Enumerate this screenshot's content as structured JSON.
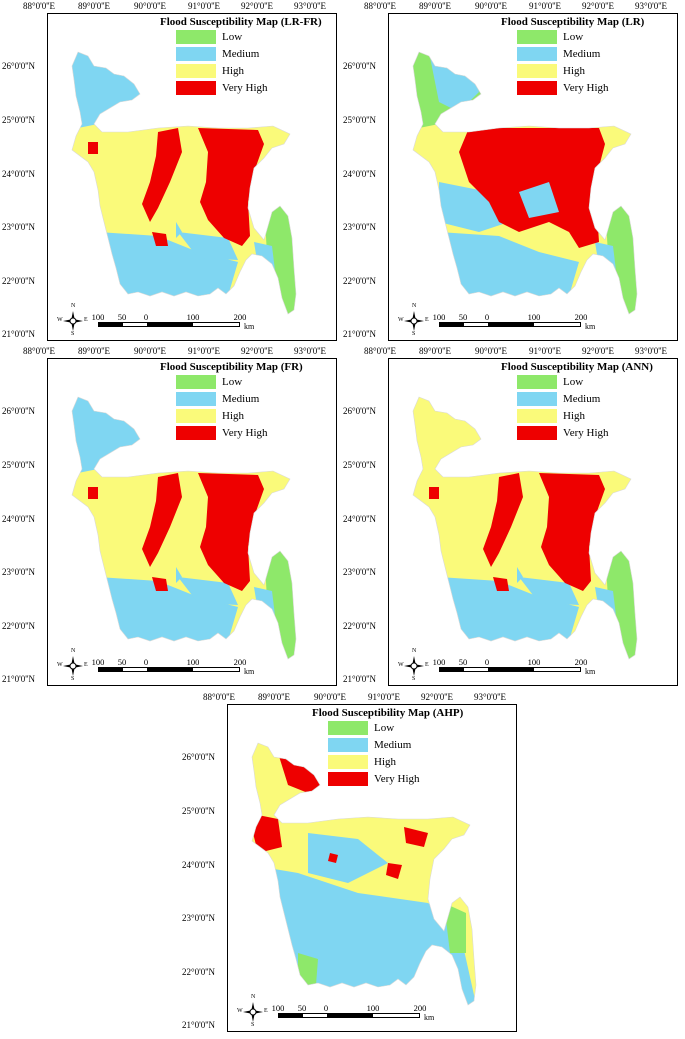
{
  "legend": {
    "items": [
      {
        "label": "Low",
        "color": "#8ee86a"
      },
      {
        "label": "Medium",
        "color": "#7fd6f2"
      },
      {
        "label": "High",
        "color": "#fafa7a"
      },
      {
        "label": "Very High",
        "color": "#ee0000"
      }
    ]
  },
  "longitude_labels": [
    "88°0'0''E",
    "89°0'0''E",
    "90°0'0''E",
    "91°0'0''E",
    "92°0'0''E",
    "93°0'0''E"
  ],
  "latitude_labels": [
    "26°0'0''N",
    "25°0'0''N",
    "24°0'0''N",
    "23°0'0''N",
    "22°0'0''N",
    "21°0'0''N"
  ],
  "scale_bar": {
    "labels": [
      "100",
      "50",
      "0",
      "100",
      "200"
    ],
    "unit": "km"
  },
  "compass": {
    "n": "N",
    "s": "S",
    "e": "E",
    "w": "W"
  },
  "maps": [
    {
      "title": "Flood Susceptibility Map (LR-FR)",
      "variant": "lrfr"
    },
    {
      "title": "Flood Susceptibility Map (LR)",
      "variant": "lr"
    },
    {
      "title": "Flood Susceptibility Map (FR)",
      "variant": "fr"
    },
    {
      "title": "Flood Susceptibility Map (ANN)",
      "variant": "ann"
    },
    {
      "title": "Flood Susceptibility Map (AHP)",
      "variant": "ahp"
    }
  ]
}
